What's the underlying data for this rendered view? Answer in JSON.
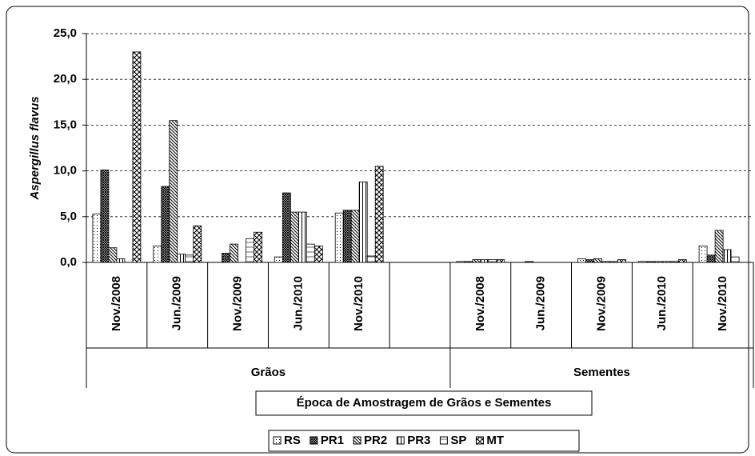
{
  "chart_data": {
    "type": "bar",
    "y_label": "Aspergillus flavus",
    "x_label": "Época de Amostragem de Grãos e Sementes",
    "category_groups": [
      "Grãos",
      "Sementes"
    ],
    "categories": [
      "Nov./2008",
      "Jun./2009",
      "Nov./2009",
      "Jun./2010",
      "Nov./2010",
      null,
      "Nov./2008",
      "Jun./2009",
      "Nov./2009",
      "Jun./2010",
      "Nov./2010"
    ],
    "series": [
      {
        "name": "RS",
        "color": "#000000",
        "pattern": "dots",
        "values": [
          5.3,
          1.8,
          0,
          0.6,
          5.4,
          null,
          0.1,
          0,
          0.4,
          0.1,
          1.8
        ]
      },
      {
        "name": "PR1",
        "color": "#000000",
        "pattern": "dense-cross",
        "values": [
          10.1,
          8.3,
          1.0,
          7.6,
          5.7,
          null,
          0.1,
          0.1,
          0.3,
          0.1,
          0.8
        ]
      },
      {
        "name": "PR2",
        "color": "#000000",
        "pattern": "diagonal",
        "values": [
          1.6,
          15.5,
          2.0,
          5.5,
          5.7,
          null,
          0.3,
          0,
          0.4,
          0.1,
          3.5
        ]
      },
      {
        "name": "PR3",
        "color": "#000000",
        "pattern": "vertical",
        "values": [
          0.4,
          0.9,
          0,
          5.5,
          8.8,
          null,
          0.3,
          0,
          0.1,
          0.1,
          1.4
        ]
      },
      {
        "name": "SP",
        "color": "#000000",
        "pattern": "horizontal",
        "values": [
          0,
          0.8,
          2.6,
          2.0,
          0.7,
          null,
          0.3,
          0,
          0.1,
          0.1,
          0.6
        ]
      },
      {
        "name": "MT",
        "color": "#000000",
        "pattern": "diag-cross",
        "values": [
          23.0,
          4.0,
          3.3,
          1.8,
          10.5,
          null,
          0.3,
          0,
          0.3,
          0.3,
          0
        ]
      }
    ],
    "ylim": [
      0,
      25
    ],
    "yticks": [
      {
        "value": 0,
        "label": "0,0"
      },
      {
        "value": 5,
        "label": "5,0"
      },
      {
        "value": 10,
        "label": "10,0"
      },
      {
        "value": 15,
        "label": "15,0"
      },
      {
        "value": 20,
        "label": "20,0"
      },
      {
        "value": 25,
        "label": "25,0"
      }
    ],
    "grid": true
  }
}
